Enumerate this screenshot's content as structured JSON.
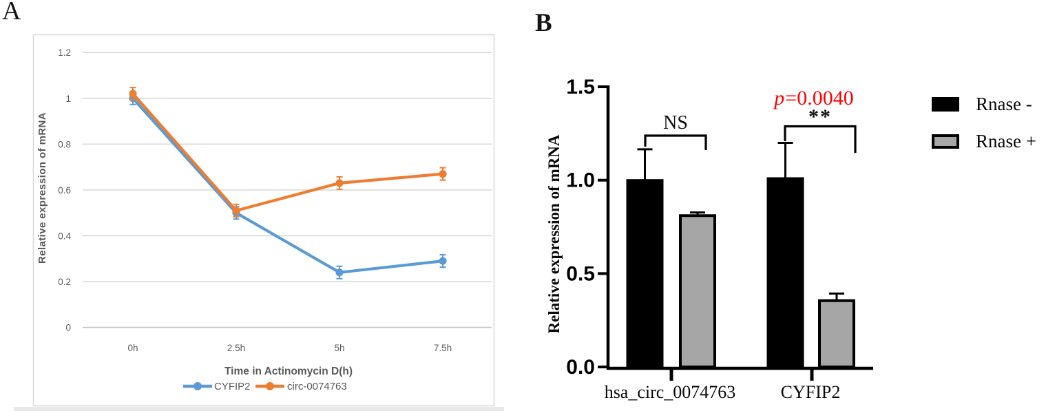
{
  "panel_a": {
    "label": "A",
    "chart_data": {
      "type": "line",
      "categories": [
        "0h",
        "2.5h",
        "5h",
        "7.5h"
      ],
      "series": [
        {
          "name": "CYFIP2",
          "color": "#5B9BD5",
          "values": [
            1.0,
            0.5,
            0.24,
            0.29
          ]
        },
        {
          "name": "circ-0074763",
          "color": "#ED7D31",
          "values": [
            1.02,
            0.51,
            0.63,
            0.67
          ]
        }
      ],
      "point_error": 0.025,
      "xlabel": "Time in Actinomycin D(h)",
      "ylabel": "Relative expression of mRNA",
      "ylim": [
        0,
        1.2
      ],
      "yticks": [
        0,
        0.2,
        0.4,
        0.6,
        0.8,
        1,
        1.2
      ],
      "ytick_labels": [
        "0",
        "0.2",
        "0.4",
        "0.6",
        "0.8",
        "1",
        "1.2"
      ],
      "grid": true,
      "grid_color": "#D9D9D9",
      "text_color": "#595959",
      "legend_position": "bottom"
    }
  },
  "panel_b": {
    "label": "B",
    "chart_data": {
      "type": "bar",
      "categories": [
        "hsa_circ_0074763",
        "CYFIP2"
      ],
      "series": [
        {
          "name": "Rnase -",
          "color": "#000000",
          "values": [
            1.0,
            1.01
          ],
          "errors": [
            0.165,
            0.19
          ]
        },
        {
          "name": "Rnase +",
          "color": "#A6A6A6",
          "values": [
            0.81,
            0.355
          ],
          "errors": [
            0.017,
            0.038
          ]
        }
      ],
      "ylabel": "Relative expression of mRNA",
      "ylim": [
        0,
        1.5
      ],
      "yticks": [
        0.0,
        0.5,
        1.0,
        1.5
      ],
      "ytick_labels": [
        "0.0",
        "0.5",
        "1.0",
        "1.5"
      ],
      "grid": false,
      "legend_position": "right",
      "annotations": [
        {
          "text": "NS",
          "group": 0
        },
        {
          "text": "**",
          "group": 1
        },
        {
          "text": "p=0.0040",
          "group": 1,
          "color": "#FF0000"
        }
      ]
    },
    "p_value": {
      "prefix": "p",
      "rest": "=0.0040",
      "color": "#FF0000"
    },
    "sig_marks": {
      "ns": "NS",
      "stars": "**"
    },
    "legend": [
      {
        "label": "Rnase -",
        "color": "#000000"
      },
      {
        "label": "Rnase +",
        "color": "#A6A6A6"
      }
    ]
  }
}
